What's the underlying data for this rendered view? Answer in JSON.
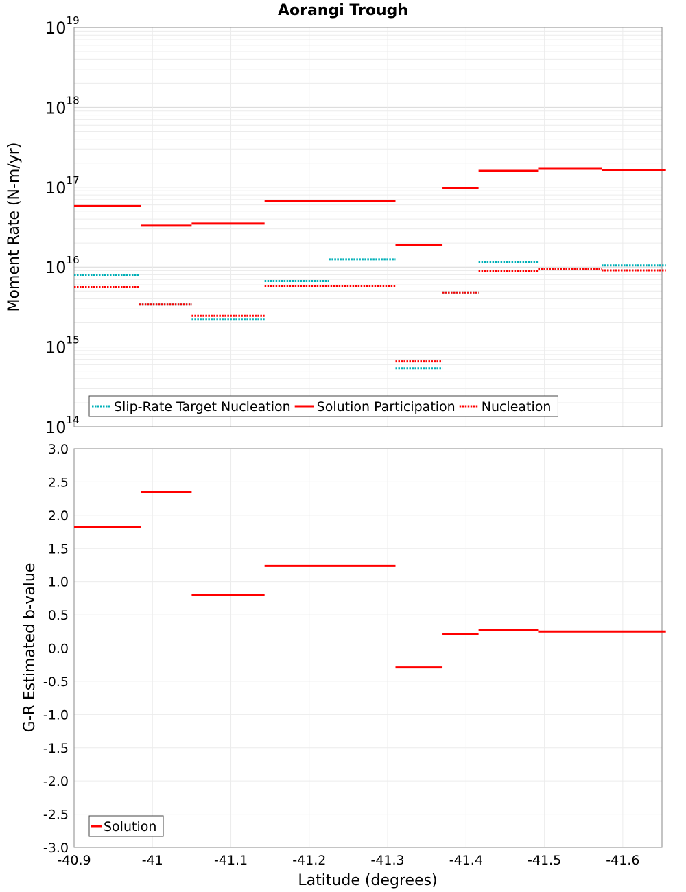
{
  "title": "Aorangi Trough",
  "chart_data": [
    {
      "type": "line",
      "title": "Aorangi Trough",
      "xlabel": "",
      "ylabel": "Moment Rate (N-m/yr)",
      "xlim": [
        -40.9,
        -41.65
      ],
      "ylim": [
        100000000000000.0,
        1e+19
      ],
      "yscale": "log",
      "y_ticks": [
        "10",
        "10",
        "10",
        "10",
        "10",
        "10"
      ],
      "y_tick_exponents": [
        "14",
        "15",
        "16",
        "17",
        "18",
        "19"
      ],
      "grid": true,
      "legend_position": "bottom-left",
      "legend": [
        {
          "name": "Slip-Rate Target Nucleation",
          "color": "#00b0b8",
          "style": "dotted"
        },
        {
          "name": "Solution Participation",
          "color": "#ff0000",
          "style": "solid"
        },
        {
          "name": "Nucleation",
          "color": "#ff0000",
          "style": "dotted"
        }
      ],
      "series": [
        {
          "name": "Slip-Rate Target Nucleation",
          "segments": [
            {
              "x": [
                -40.9,
                -40.983
              ],
              "y": 8000000000000000.0
            },
            {
              "x": [
                -40.983,
                -41.05
              ],
              "y": 3400000000000000.0
            },
            {
              "x": [
                -41.05,
                -41.143
              ],
              "y": 2200000000000000.0
            },
            {
              "x": [
                -41.143,
                -41.225
              ],
              "y": 6700000000000000.0
            },
            {
              "x": [
                -41.225,
                -41.31
              ],
              "y": 1.25e+16
            },
            {
              "x": [
                -41.31,
                -41.37
              ],
              "y": 540000000000000.0
            },
            {
              "x": [
                -41.37,
                -41.416
              ],
              "y": 4800000000000000.0
            },
            {
              "x": [
                -41.416,
                -41.492
              ],
              "y": 1.15e+16
            },
            {
              "x": [
                -41.492,
                -41.573
              ],
              "y": 9500000000000000.0
            },
            {
              "x": [
                -41.573,
                -41.655
              ],
              "y": 1.05e+16
            }
          ]
        },
        {
          "name": "Solution Participation",
          "segments": [
            {
              "x": [
                -40.9,
                -40.985
              ],
              "y": 5.8e+16
            },
            {
              "x": [
                -40.985,
                -41.05
              ],
              "y": 3.3e+16
            },
            {
              "x": [
                -41.05,
                -41.143
              ],
              "y": 3.5e+16
            },
            {
              "x": [
                -41.143,
                -41.31
              ],
              "y": 6.7e+16
            },
            {
              "x": [
                -41.31,
                -41.37
              ],
              "y": 1.9e+16
            },
            {
              "x": [
                -41.37,
                -41.416
              ],
              "y": 9.8e+16
            },
            {
              "x": [
                -41.416,
                -41.492
              ],
              "y": 1.6e+17
            },
            {
              "x": [
                -41.492,
                -41.573
              ],
              "y": 1.7e+17
            },
            {
              "x": [
                -41.573,
                -41.655
              ],
              "y": 1.65e+17
            }
          ]
        },
        {
          "name": "Nucleation",
          "segments": [
            {
              "x": [
                -40.9,
                -40.983
              ],
              "y": 5600000000000000.0
            },
            {
              "x": [
                -40.983,
                -41.05
              ],
              "y": 3400000000000000.0
            },
            {
              "x": [
                -41.05,
                -41.143
              ],
              "y": 2450000000000000.0
            },
            {
              "x": [
                -41.143,
                -41.31
              ],
              "y": 5800000000000000.0
            },
            {
              "x": [
                -41.31,
                -41.37
              ],
              "y": 660000000000000.0
            },
            {
              "x": [
                -41.37,
                -41.416
              ],
              "y": 4800000000000000.0
            },
            {
              "x": [
                -41.416,
                -41.492
              ],
              "y": 8900000000000000.0
            },
            {
              "x": [
                -41.492,
                -41.573
              ],
              "y": 9400000000000000.0
            },
            {
              "x": [
                -41.573,
                -41.655
              ],
              "y": 9100000000000000.0
            }
          ]
        }
      ]
    },
    {
      "type": "line",
      "title": "",
      "xlabel": "Latitude (degrees)",
      "ylabel": "G-R Estimated b-value",
      "xlim": [
        -40.9,
        -41.65
      ],
      "ylim": [
        -3.0,
        3.0
      ],
      "y_ticks": [
        "-3.0",
        "-2.5",
        "-2.0",
        "-1.5",
        "-1.0",
        "-0.5",
        "0.0",
        "0.5",
        "1.0",
        "1.5",
        "2.0",
        "2.5",
        "3.0"
      ],
      "x_ticks": [
        "-40.9",
        "-41",
        "-41.1",
        "-41.2",
        "-41.3",
        "-41.4",
        "-41.5",
        "-41.6"
      ],
      "grid": true,
      "legend_position": "bottom-left",
      "legend": [
        {
          "name": "Solution",
          "color": "#ff0000",
          "style": "solid"
        }
      ],
      "series": [
        {
          "name": "Solution",
          "segments": [
            {
              "x": [
                -40.9,
                -40.985
              ],
              "y": 1.82
            },
            {
              "x": [
                -40.985,
                -41.05
              ],
              "y": 2.35
            },
            {
              "x": [
                -41.05,
                -41.143
              ],
              "y": 0.8
            },
            {
              "x": [
                -41.143,
                -41.31
              ],
              "y": 1.24
            },
            {
              "x": [
                -41.31,
                -41.37
              ],
              "y": -0.29
            },
            {
              "x": [
                -41.37,
                -41.416
              ],
              "y": 0.21
            },
            {
              "x": [
                -41.416,
                -41.492
              ],
              "y": 0.27
            },
            {
              "x": [
                -41.492,
                -41.573
              ],
              "y": 0.25
            },
            {
              "x": [
                -41.573,
                -41.655
              ],
              "y": 0.25
            }
          ]
        }
      ]
    }
  ]
}
